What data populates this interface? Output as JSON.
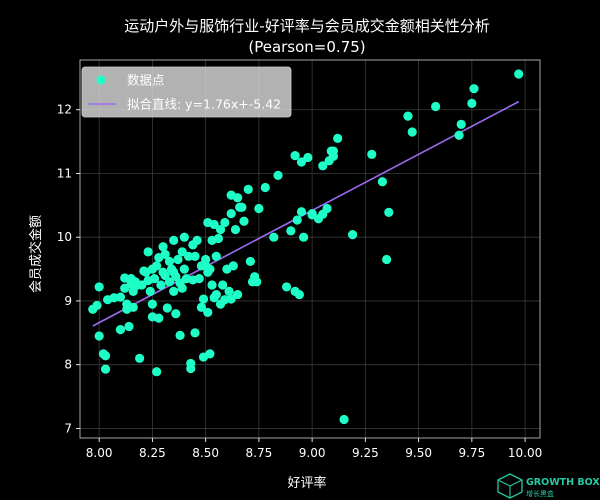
{
  "chart_data": {
    "type": "scatter",
    "title_line1": "运动户外与服饰行业-好评率与会员成交金额相关性分析",
    "title_line2": "(Pearson=0.75)",
    "xlabel": "好评率",
    "ylabel": "会员成交金额",
    "xlim": [
      7.91,
      10.07
    ],
    "ylim": [
      6.85,
      12.78
    ],
    "x_ticks": [
      8.0,
      8.25,
      8.5,
      8.75,
      9.0,
      9.25,
      9.5,
      9.75,
      10.0
    ],
    "x_tick_labels": [
      "8.00",
      "8.25",
      "8.50",
      "8.75",
      "9.00",
      "9.25",
      "9.50",
      "9.75",
      "10.00"
    ],
    "y_ticks": [
      7,
      8,
      9,
      10,
      11,
      12
    ],
    "y_tick_labels": [
      "7",
      "8",
      "9",
      "10",
      "11",
      "12"
    ],
    "grid": true,
    "legend_position": "top-left",
    "series": [
      {
        "name": "数据点",
        "kind": "scatter",
        "color": "#1effc8",
        "points": [
          [
            7.97,
            8.87
          ],
          [
            7.99,
            8.93
          ],
          [
            8.0,
            9.22
          ],
          [
            8.0,
            8.45
          ],
          [
            8.02,
            8.17
          ],
          [
            8.03,
            8.14
          ],
          [
            8.03,
            7.93
          ],
          [
            8.04,
            9.02
          ],
          [
            8.07,
            9.05
          ],
          [
            8.1,
            9.06
          ],
          [
            8.1,
            8.55
          ],
          [
            8.12,
            9.36
          ],
          [
            8.12,
            9.2
          ],
          [
            8.13,
            8.95
          ],
          [
            8.13,
            8.87
          ],
          [
            8.14,
            8.6
          ],
          [
            8.15,
            9.35
          ],
          [
            8.15,
            9.27
          ],
          [
            8.16,
            9.15
          ],
          [
            8.16,
            8.9
          ],
          [
            8.17,
            9.3
          ],
          [
            8.18,
            9.25
          ],
          [
            8.19,
            8.1
          ],
          [
            8.2,
            9.25
          ],
          [
            8.21,
            9.47
          ],
          [
            8.22,
            9.45
          ],
          [
            8.23,
            9.77
          ],
          [
            8.23,
            9.32
          ],
          [
            8.24,
            9.15
          ],
          [
            8.25,
            9.5
          ],
          [
            8.25,
            8.95
          ],
          [
            8.25,
            8.75
          ],
          [
            8.26,
            9.35
          ],
          [
            8.27,
            9.55
          ],
          [
            8.27,
            7.89
          ],
          [
            8.28,
            9.68
          ],
          [
            8.28,
            8.73
          ],
          [
            8.29,
            9.25
          ],
          [
            8.3,
            9.85
          ],
          [
            8.3,
            9.45
          ],
          [
            8.31,
            9.73
          ],
          [
            8.31,
            9.4
          ],
          [
            8.32,
            8.89
          ],
          [
            8.33,
            9.62
          ],
          [
            8.33,
            9.3
          ],
          [
            8.34,
            9.5
          ],
          [
            8.35,
            9.95
          ],
          [
            8.35,
            9.45
          ],
          [
            8.35,
            9.15
          ],
          [
            8.36,
            9.38
          ],
          [
            8.36,
            8.8
          ],
          [
            8.37,
            9.65
          ],
          [
            8.38,
            9.28
          ],
          [
            8.38,
            8.46
          ],
          [
            8.39,
            9.77
          ],
          [
            8.39,
            9.2
          ],
          [
            8.4,
            10.0
          ],
          [
            8.4,
            9.5
          ],
          [
            8.41,
            9.35
          ],
          [
            8.42,
            9.7
          ],
          [
            8.43,
            8.02
          ],
          [
            8.43,
            7.94
          ],
          [
            8.44,
            9.88
          ],
          [
            8.44,
            9.33
          ],
          [
            8.45,
            9.7
          ],
          [
            8.45,
            8.5
          ],
          [
            8.46,
            9.95
          ],
          [
            8.47,
            9.35
          ],
          [
            8.48,
            9.55
          ],
          [
            8.48,
            8.9
          ],
          [
            8.49,
            9.03
          ],
          [
            8.49,
            8.12
          ],
          [
            8.5,
            9.65
          ],
          [
            8.5,
            9.55
          ],
          [
            8.51,
            10.23
          ],
          [
            8.51,
            9.45
          ],
          [
            8.51,
            8.82
          ],
          [
            8.52,
            9.5
          ],
          [
            8.52,
            8.17
          ],
          [
            8.53,
            9.95
          ],
          [
            8.53,
            9.25
          ],
          [
            8.54,
            10.2
          ],
          [
            8.54,
            9.05
          ],
          [
            8.55,
            9.7
          ],
          [
            8.55,
            9.1
          ],
          [
            8.56,
            9.98
          ],
          [
            8.57,
            10.12
          ],
          [
            8.57,
            8.95
          ],
          [
            8.58,
            9.25
          ],
          [
            8.59,
            9.02
          ],
          [
            8.59,
            10.23
          ],
          [
            8.6,
            9.5
          ],
          [
            8.61,
            9.15
          ],
          [
            8.62,
            9.03
          ],
          [
            8.62,
            10.37
          ],
          [
            8.62,
            10.66
          ],
          [
            8.63,
            9.55
          ],
          [
            8.64,
            10.12
          ],
          [
            8.65,
            10.62
          ],
          [
            8.65,
            9.1
          ],
          [
            8.66,
            10.47
          ],
          [
            8.67,
            10.47
          ],
          [
            8.68,
            10.25
          ],
          [
            8.7,
            10.75
          ],
          [
            8.71,
            9.62
          ],
          [
            8.72,
            9.3
          ],
          [
            8.73,
            9.38
          ],
          [
            8.74,
            9.3
          ],
          [
            8.75,
            10.45
          ],
          [
            8.78,
            10.78
          ],
          [
            8.82,
            10.0
          ],
          [
            8.84,
            10.97
          ],
          [
            8.88,
            9.22
          ],
          [
            8.9,
            10.1
          ],
          [
            8.92,
            11.28
          ],
          [
            8.92,
            9.15
          ],
          [
            8.93,
            10.27
          ],
          [
            8.94,
            9.1
          ],
          [
            8.95,
            10.4
          ],
          [
            8.95,
            11.18
          ],
          [
            8.96,
            10.0
          ],
          [
            8.98,
            11.25
          ],
          [
            9.0,
            10.35
          ],
          [
            9.0,
            10.37
          ],
          [
            9.03,
            10.29
          ],
          [
            9.05,
            11.12
          ],
          [
            9.05,
            10.36
          ],
          [
            9.07,
            10.45
          ],
          [
            9.08,
            11.2
          ],
          [
            9.09,
            11.35
          ],
          [
            9.1,
            11.27
          ],
          [
            9.1,
            11.35
          ],
          [
            9.12,
            11.55
          ],
          [
            9.15,
            7.14
          ],
          [
            9.19,
            10.04
          ],
          [
            9.28,
            11.3
          ],
          [
            9.33,
            10.87
          ],
          [
            9.35,
            9.65
          ],
          [
            9.36,
            10.39
          ],
          [
            9.45,
            11.9
          ],
          [
            9.47,
            11.65
          ],
          [
            9.58,
            12.05
          ],
          [
            9.69,
            11.6
          ],
          [
            9.7,
            11.77
          ],
          [
            9.75,
            12.1
          ],
          [
            9.76,
            12.33
          ],
          [
            9.97,
            12.56
          ]
        ]
      },
      {
        "name": "拟合直线: y=1.76x+-5.42",
        "kind": "line",
        "color": "#9b6cf0",
        "slope": 1.76,
        "intercept": -5.42,
        "x_range": [
          7.97,
          9.97
        ]
      }
    ]
  },
  "watermark": {
    "brand": "GROWTH BOX",
    "sub": "增长黑盒",
    "color": "#26c9a4"
  }
}
